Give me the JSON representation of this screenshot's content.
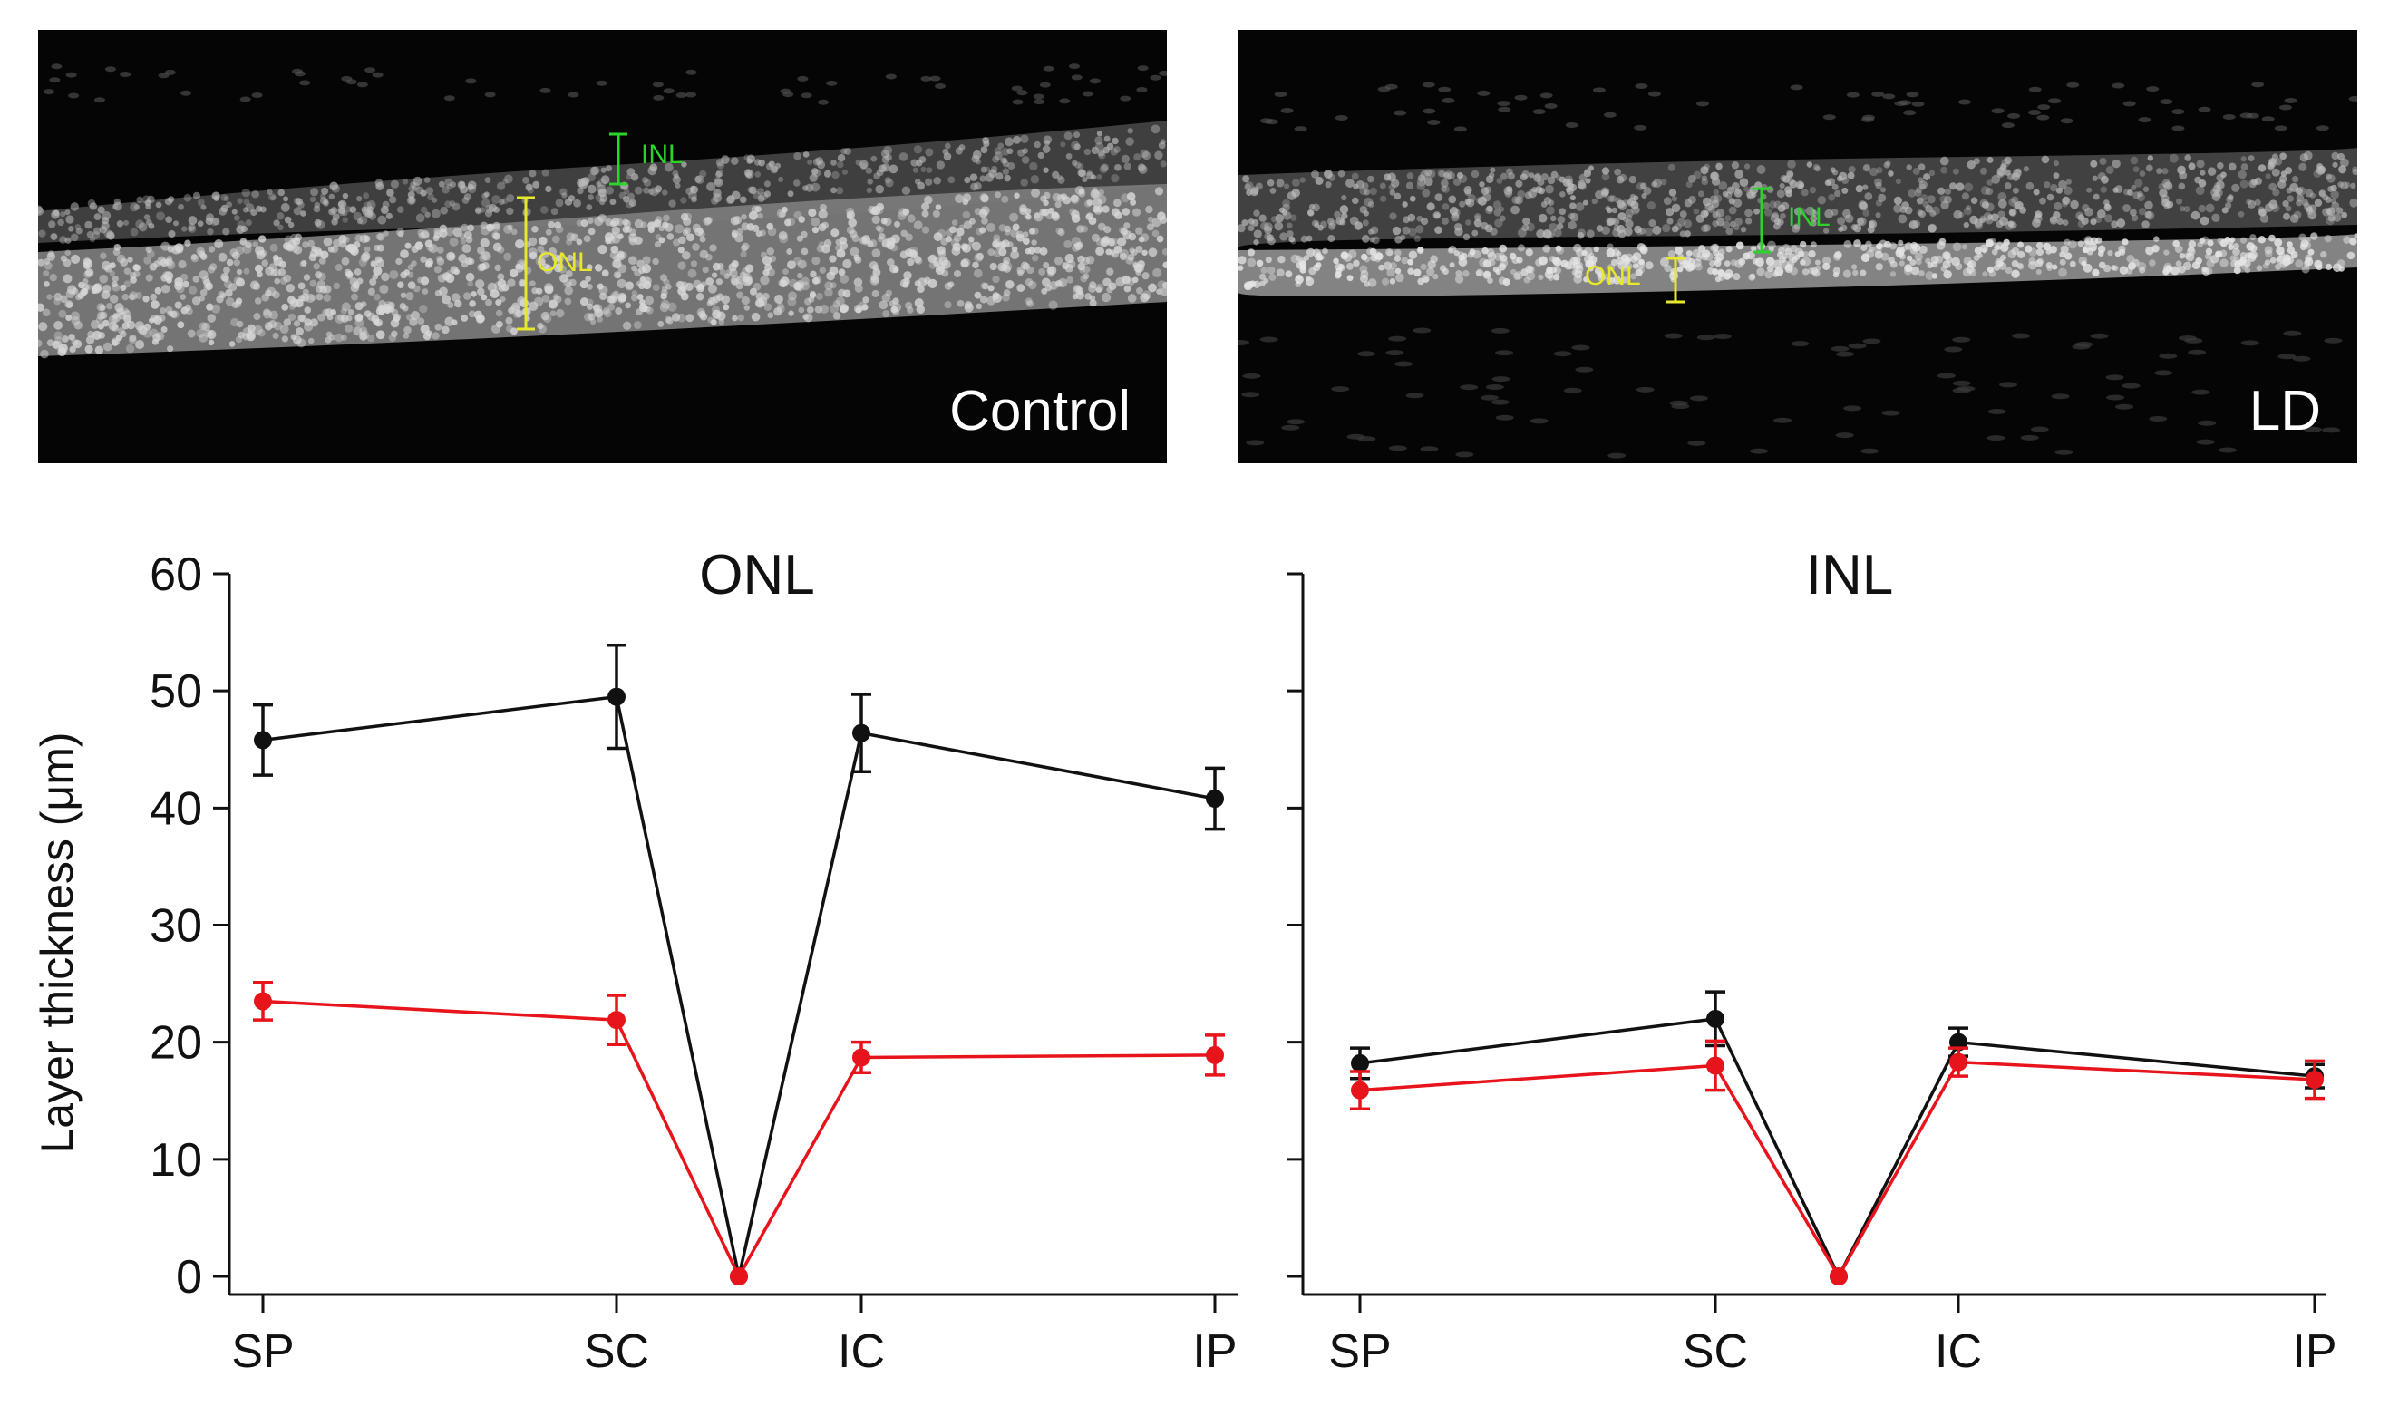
{
  "images": [
    {
      "label": "Control",
      "annotations": [
        {
          "text": "INL",
          "color": "#2dd32d"
        },
        {
          "text": "ONL",
          "color": "#e8e82a"
        }
      ]
    },
    {
      "label": "LD",
      "annotations": [
        {
          "text": "INL",
          "color": "#2dd32d"
        },
        {
          "text": "ONL",
          "color": "#e8e82a"
        }
      ]
    }
  ],
  "chart_data": [
    {
      "type": "line",
      "title": "ONL",
      "ylabel": "Layer thickness (μm)",
      "xlabel": "",
      "ylim": [
        0,
        60
      ],
      "yticks": [
        0,
        10,
        20,
        30,
        40,
        50,
        60
      ],
      "x_tick_labels": [
        "SP",
        "SC",
        "IC",
        "IP"
      ],
      "x_tick_positions": [
        -4,
        -1,
        1,
        4
      ],
      "series": [
        {
          "color": "#111111",
          "points": [
            {
              "x": -4,
              "y": 45.8,
              "err": 3.0
            },
            {
              "x": -1,
              "y": 49.5,
              "err": 4.4
            },
            {
              "x": 0,
              "y": 0,
              "err": 0
            },
            {
              "x": 1,
              "y": 46.4,
              "err": 3.3
            },
            {
              "x": 4,
              "y": 40.8,
              "err": 2.6
            }
          ]
        },
        {
          "color": "#e8141c",
          "points": [
            {
              "x": -4,
              "y": 23.5,
              "err": 1.6
            },
            {
              "x": -1,
              "y": 21.9,
              "err": 2.1
            },
            {
              "x": 0,
              "y": 0,
              "err": 0
            },
            {
              "x": 1,
              "y": 18.7,
              "err": 1.3
            },
            {
              "x": 4,
              "y": 18.9,
              "err": 1.7
            }
          ]
        }
      ]
    },
    {
      "type": "line",
      "title": "INL",
      "ylabel": "",
      "xlabel": "",
      "ylim": [
        0,
        60
      ],
      "yticks": [
        0,
        10,
        20,
        30,
        40,
        50,
        60
      ],
      "x_tick_labels": [
        "SP",
        "SC",
        "IC",
        "IP"
      ],
      "x_tick_positions": [
        -4,
        -1,
        1,
        4
      ],
      "series": [
        {
          "color": "#111111",
          "points": [
            {
              "x": -4,
              "y": 18.2,
              "err": 1.3
            },
            {
              "x": -1,
              "y": 22.0,
              "err": 2.3
            },
            {
              "x": 0,
              "y": 0,
              "err": 0
            },
            {
              "x": 1,
              "y": 20.0,
              "err": 1.2
            },
            {
              "x": 4,
              "y": 17.1,
              "err": 1.0
            }
          ]
        },
        {
          "color": "#e8141c",
          "points": [
            {
              "x": -4,
              "y": 15.9,
              "err": 1.6
            },
            {
              "x": -1,
              "y": 18.0,
              "err": 2.1
            },
            {
              "x": 0,
              "y": 0,
              "err": 0
            },
            {
              "x": 1,
              "y": 18.3,
              "err": 1.2
            },
            {
              "x": 4,
              "y": 16.8,
              "err": 1.6
            }
          ]
        }
      ]
    }
  ]
}
